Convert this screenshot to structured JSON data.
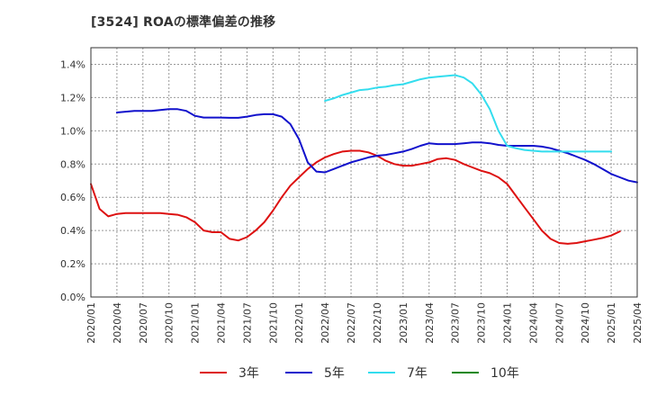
{
  "chart_data": {
    "type": "line",
    "title": "[3524]  ROAの標準偏差の推移",
    "xlabel": "",
    "ylabel": "",
    "ylim": [
      0,
      1.5
    ],
    "y_ticks": [
      "0.0%",
      "0.2%",
      "0.4%",
      "0.6%",
      "0.8%",
      "1.0%",
      "1.2%",
      "1.4%"
    ],
    "y_tick_values": [
      0,
      0.2,
      0.4,
      0.6,
      0.8,
      1.0,
      1.2,
      1.4
    ],
    "x_ticks": [
      "2020/01",
      "2020/04",
      "2020/07",
      "2020/10",
      "2021/01",
      "2021/04",
      "2021/07",
      "2021/10",
      "2022/01",
      "2022/04",
      "2022/07",
      "2022/10",
      "2023/01",
      "2023/04",
      "2023/07",
      "2023/10",
      "2024/01",
      "2024/04",
      "2024/07",
      "2024/10",
      "2025/01",
      "2025/04"
    ],
    "x_range_months": [
      0,
      63
    ],
    "legend_position": "bottom",
    "series": [
      {
        "name": "3年",
        "color": "#dd1111",
        "start_month": 0,
        "values": [
          0.68,
          0.53,
          0.485,
          0.5,
          0.505,
          0.505,
          0.505,
          0.505,
          0.505,
          0.5,
          0.495,
          0.48,
          0.45,
          0.4,
          0.39,
          0.39,
          0.35,
          0.34,
          0.36,
          0.4,
          0.45,
          0.52,
          0.6,
          0.67,
          0.72,
          0.77,
          0.81,
          0.84,
          0.86,
          0.875,
          0.88,
          0.88,
          0.87,
          0.85,
          0.82,
          0.8,
          0.79,
          0.79,
          0.8,
          0.81,
          0.83,
          0.835,
          0.825,
          0.8,
          0.78,
          0.76,
          0.745,
          0.72,
          0.68,
          0.61,
          0.54,
          0.47,
          0.4,
          0.35,
          0.325,
          0.32,
          0.325,
          0.335,
          0.345,
          0.355,
          0.37,
          0.395
        ]
      },
      {
        "name": "5年",
        "color": "#1111cc",
        "start_month": 3,
        "values": [
          1.11,
          1.115,
          1.12,
          1.12,
          1.12,
          1.125,
          1.13,
          1.13,
          1.12,
          1.09,
          1.08,
          1.08,
          1.08,
          1.078,
          1.078,
          1.085,
          1.095,
          1.1,
          1.1,
          1.085,
          1.04,
          0.95,
          0.81,
          0.755,
          0.75,
          0.77,
          0.79,
          0.81,
          0.825,
          0.84,
          0.85,
          0.855,
          0.865,
          0.875,
          0.89,
          0.91,
          0.925,
          0.92,
          0.92,
          0.92,
          0.925,
          0.93,
          0.93,
          0.925,
          0.915,
          0.91,
          0.91,
          0.91,
          0.91,
          0.905,
          0.895,
          0.88,
          0.865,
          0.845,
          0.825,
          0.8,
          0.77,
          0.74,
          0.72,
          0.7,
          0.69
        ]
      },
      {
        "name": "7年",
        "color": "#33ddee",
        "start_month": 27,
        "values": [
          1.18,
          1.195,
          1.215,
          1.23,
          1.245,
          1.25,
          1.26,
          1.265,
          1.275,
          1.28,
          1.295,
          1.31,
          1.32,
          1.325,
          1.33,
          1.335,
          1.32,
          1.285,
          1.22,
          1.13,
          1.0,
          0.91,
          0.895,
          0.885,
          0.88,
          0.875,
          0.875,
          0.875,
          0.875,
          0.875,
          0.875,
          0.875,
          0.875,
          0.875
        ]
      },
      {
        "name": "10年",
        "color": "#118811",
        "start_month": 0,
        "values": []
      }
    ]
  }
}
